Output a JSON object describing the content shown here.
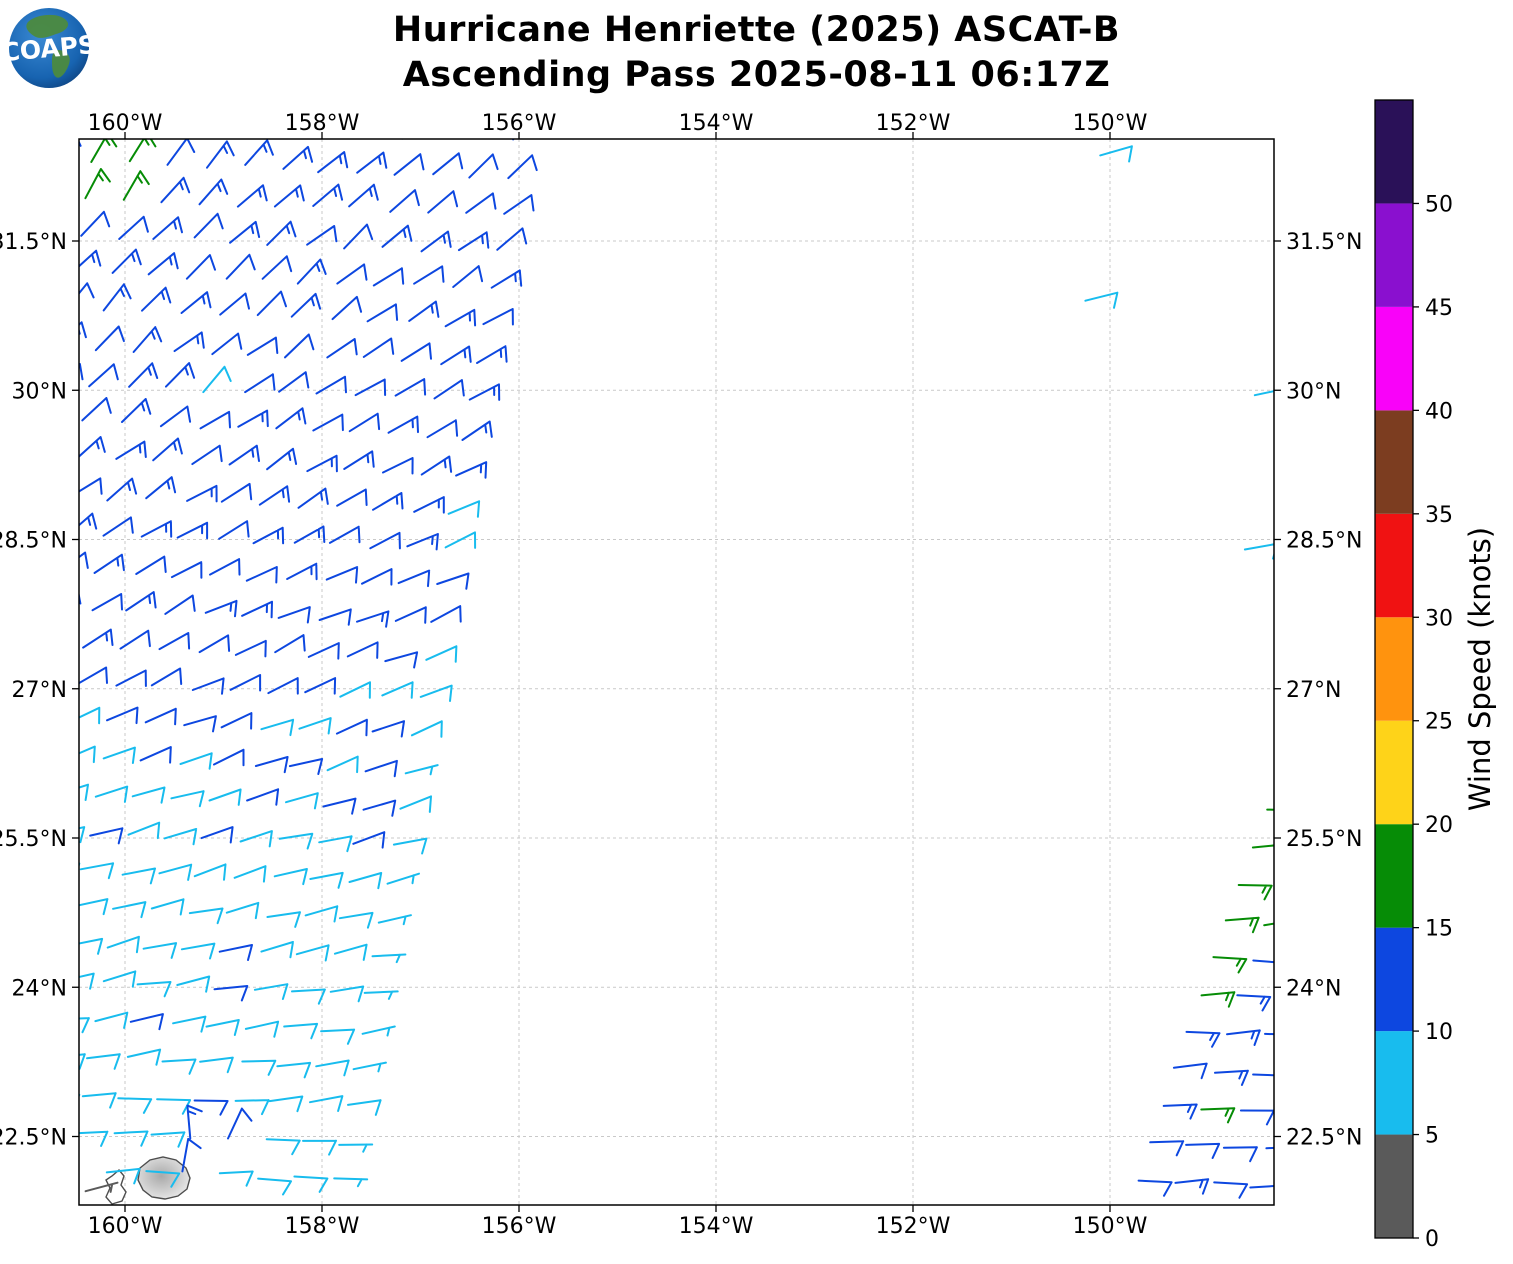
{
  "logo": {
    "text": "COAPS"
  },
  "chart_data": {
    "type": "wind_barb_map",
    "title_line1": "Hurricane Henriette (2025) ASCAT-B",
    "title_line2": "Ascending Pass 2025-08-11 06:17Z",
    "projection": {
      "lon_west": -160.47,
      "lon_east": -148.32,
      "lat_south": 21.81,
      "lat_north": 32.52
    },
    "x_axis": {
      "tick_lons": [
        -160,
        -158,
        -156,
        -154,
        -152,
        -150
      ],
      "tick_labels": [
        "160°W",
        "158°W",
        "156°W",
        "154°W",
        "152°W",
        "150°W"
      ]
    },
    "y_axis": {
      "tick_lats": [
        31.5,
        30,
        28.5,
        27,
        25.5,
        24,
        22.5
      ],
      "tick_labels": [
        "31.5°N",
        "30°N",
        "28.5°N",
        "27°N",
        "25.5°N",
        "24°N",
        "22.5°N"
      ]
    },
    "colorbar": {
      "label": "Wind Speed (knots)",
      "levels": [
        0,
        5,
        10,
        15,
        20,
        25,
        30,
        35,
        40,
        45,
        50,
        55
      ],
      "tick_values": [
        0,
        5,
        10,
        15,
        20,
        25,
        30,
        35,
        40,
        45,
        50
      ],
      "tick_labels": [
        "0",
        "5",
        "10",
        "15",
        "20",
        "25",
        "30",
        "35",
        "40",
        "45",
        "50"
      ],
      "colors": [
        "#5a5a5a",
        "#18bcee",
        "#0d47e0",
        "#068c06",
        "#fed319",
        "#ff930e",
        "#f01212",
        "#7c3d20",
        "#f902f9",
        "#8a10cf",
        "#2a1158"
      ]
    },
    "grid": {
      "lat_start": 32.5,
      "lat_step": 0.373,
      "lon_step": 0.385,
      "row_tilt": 0.04,
      "pos_jitter": 0.05
    },
    "swaths": [
      {
        "id": "left",
        "side": -1,
        "boundary": {
          "lat0": 21.83,
          "lon0": -157.72,
          "slope_lon_per_lat": 0.176
        },
        "limit_lon": -160.85,
        "col_offset": 0.5
      },
      {
        "id": "right",
        "side": 1,
        "boundary": {
          "lat0": 21.93,
          "lon0": -149.9,
          "slope_lon_per_lat": 0.349
        },
        "limit_lon": -147.85,
        "col_offset": 0.35
      }
    ],
    "wind_model": {
      "direction": {
        "base_from_deg": 90,
        "lat_ref": 22,
        "f_lon_ref": -148.3,
        "f_base": 0.9,
        "f_per_deg": 0.355,
        "f_min": 0.8,
        "f_max": 5.6,
        "jitter_deg": 14
      },
      "left_speed": {
        "base_high": 12.6,
        "lat_high": 28.3,
        "lat_low": 25.2,
        "base_low": 8.9,
        "slope": 1.2,
        "edge_width": 0.5,
        "edge_drop": 2.0,
        "edge_lat_max": 28.8,
        "jitter": 2.8,
        "min": 6,
        "max": 15.2
      },
      "right_speed": {
        "blue_base": 12.6,
        "blue_slope": 0.5,
        "blue_min": 10.2,
        "blue_max": 14.6,
        "blue_jitter": 2.0,
        "green_base": 17.8,
        "green_drop": 2.2,
        "green_jitter": 1.8,
        "green_width_base": 1.6,
        "green_width_north_slope": 0.13,
        "green_width_south_slope": 0.44,
        "yellow_lat_min": 27.3,
        "yellow_lat_max": 29.6,
        "yellow_center_lat": 28.55,
        "yellow_halfwidth": 0.95,
        "yellow_taper": 0.75,
        "yellow_speed": 21.8,
        "yellow_jitter": 2.4
      }
    },
    "anomalies": [
      {
        "lon": -160.42,
        "lat": 32.35,
        "spd": 16,
        "dir": 30
      },
      {
        "lon": -160.42,
        "lat": 32.0,
        "spd": 16,
        "dir": 28
      },
      {
        "lon": -160.12,
        "lat": 32.25,
        "spd": 16,
        "dir": 32
      },
      {
        "lon": -160.15,
        "lat": 31.85,
        "spd": 16,
        "dir": 30
      },
      {
        "lon": -159.38,
        "lat": 30.0,
        "spd": 9,
        "dir": 40
      },
      {
        "lon": -150.1,
        "lat": 32.36,
        "spd": 9,
        "dir": 74
      },
      {
        "lon": -150.25,
        "lat": 30.9,
        "spd": 9,
        "dir": 76
      },
      {
        "lon": -148.53,
        "lat": 29.95,
        "spd": 9,
        "dir": 78
      },
      {
        "lon": -148.63,
        "lat": 28.4,
        "spd": 9,
        "dir": 80
      },
      {
        "lon": -148.93,
        "lat": 22.59,
        "spd": 16,
        "dir": 88
      },
      {
        "lon": -159.25,
        "lat": 22.55,
        "spd": 13,
        "dir": 355
      },
      {
        "lon": -158.98,
        "lat": 22.38,
        "spd": 12,
        "dir": 25
      },
      {
        "lon": -159.55,
        "lat": 22.15,
        "spd": 12,
        "dir": 10
      },
      {
        "lon": -160.44,
        "lat": 22.22,
        "spd": 3,
        "dir": 0
      },
      {
        "lon": -160.4,
        "lat": 21.95,
        "spd": 4,
        "dir": 75
      }
    ],
    "islands": {
      "kauai": [
        [
          140,
          1168
        ],
        [
          150,
          1160
        ],
        [
          163,
          1157
        ],
        [
          176,
          1160
        ],
        [
          186,
          1168
        ],
        [
          190,
          1178
        ],
        [
          187,
          1189
        ],
        [
          178,
          1196
        ],
        [
          165,
          1199
        ],
        [
          152,
          1197
        ],
        [
          143,
          1190
        ],
        [
          138,
          1180
        ]
      ],
      "niihau": [
        [
          112,
          1176
        ],
        [
          119,
          1170
        ],
        [
          124,
          1176
        ],
        [
          121,
          1185
        ],
        [
          126,
          1192
        ],
        [
          122,
          1201
        ],
        [
          112,
          1204
        ],
        [
          106,
          1197
        ],
        [
          110,
          1188
        ],
        [
          106,
          1180
        ]
      ]
    }
  }
}
